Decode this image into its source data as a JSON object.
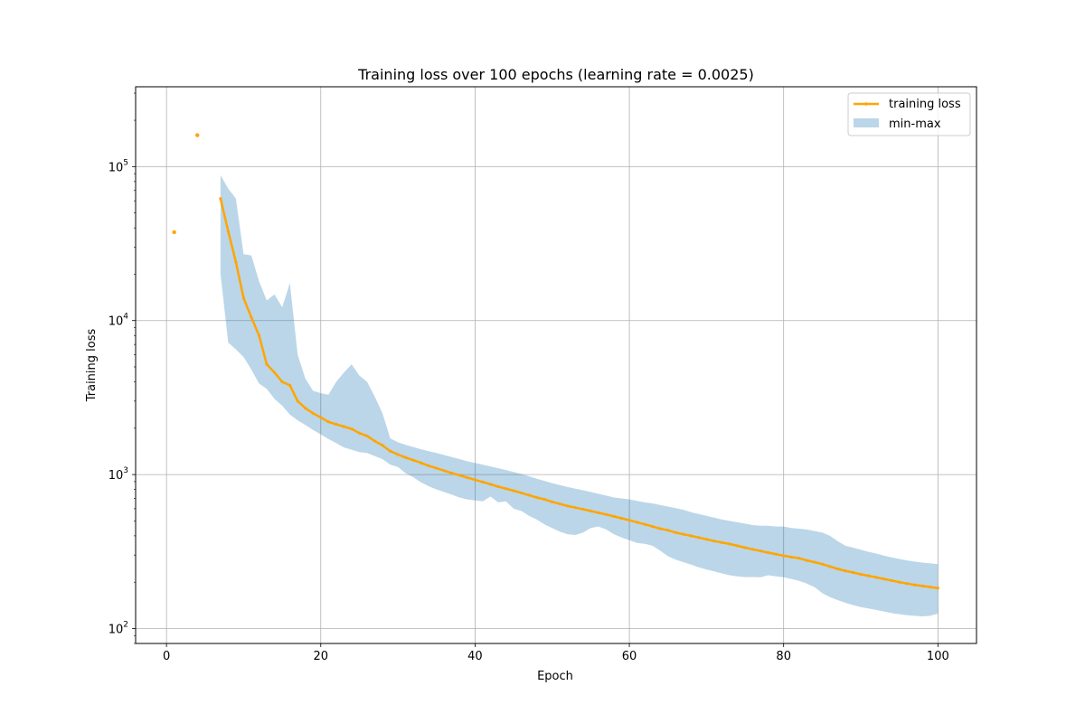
{
  "chart_data": {
    "type": "line",
    "title": "Training loss over 100 epochs (learning rate = 0.0025)",
    "xlabel": "Epoch",
    "ylabel": "Training loss",
    "yscale": "log",
    "xlim": [
      -4,
      105
    ],
    "ylim": [
      80,
      330000
    ],
    "xticks": [
      0,
      20,
      40,
      60,
      80,
      100
    ],
    "yticks": [
      100,
      1000,
      10000,
      100000
    ],
    "ytick_labels": [
      {
        "base": "10",
        "exp": "2"
      },
      {
        "base": "10",
        "exp": "3"
      },
      {
        "base": "10",
        "exp": "4"
      },
      {
        "base": "10",
        "exp": "5"
      }
    ],
    "grid": true,
    "legend_position": "top-right",
    "colors": {
      "line": "#ffa500",
      "band": "#1f77b4"
    },
    "series": [
      {
        "name": "training loss",
        "kind": "line",
        "isolated_points": [
          [
            1,
            37500
          ],
          [
            4,
            160000
          ]
        ],
        "x": [
          7,
          8,
          9,
          10,
          11,
          12,
          13,
          14,
          15,
          16,
          17,
          18,
          19,
          20,
          21,
          22,
          23,
          24,
          25,
          26,
          27,
          28,
          29,
          30,
          31,
          32,
          33,
          34,
          35,
          36,
          37,
          38,
          39,
          40,
          41,
          42,
          43,
          44,
          45,
          46,
          47,
          48,
          49,
          50,
          51,
          52,
          53,
          54,
          55,
          56,
          57,
          58,
          59,
          60,
          61,
          62,
          63,
          64,
          65,
          66,
          67,
          68,
          69,
          70,
          71,
          72,
          73,
          74,
          75,
          76,
          77,
          78,
          79,
          80,
          81,
          82,
          83,
          84,
          85,
          86,
          87,
          88,
          89,
          90,
          91,
          92,
          93,
          94,
          95,
          96,
          97,
          98,
          99,
          100
        ],
        "y": [
          62000,
          38000,
          24000,
          14000,
          10500,
          8000,
          5200,
          4600,
          4000,
          3800,
          3000,
          2700,
          2500,
          2350,
          2200,
          2120,
          2050,
          1980,
          1860,
          1780,
          1650,
          1550,
          1420,
          1350,
          1290,
          1240,
          1190,
          1140,
          1100,
          1060,
          1020,
          990,
          955,
          925,
          895,
          865,
          835,
          810,
          785,
          760,
          735,
          710,
          690,
          665,
          645,
          625,
          610,
          595,
          580,
          565,
          550,
          535,
          520,
          505,
          490,
          475,
          460,
          445,
          435,
          420,
          410,
          400,
          390,
          380,
          370,
          362,
          354,
          345,
          335,
          327,
          319,
          311,
          304,
          297,
          291,
          286,
          277,
          270,
          262,
          253,
          244,
          237,
          231,
          225,
          220,
          215,
          210,
          205,
          200,
          196,
          192,
          189,
          186,
          183
        ]
      },
      {
        "name": "min-max",
        "kind": "band",
        "x": [
          7,
          8,
          9,
          10,
          11,
          12,
          13,
          14,
          15,
          16,
          17,
          18,
          19,
          20,
          21,
          22,
          23,
          24,
          25,
          26,
          27,
          28,
          29,
          30,
          31,
          32,
          33,
          34,
          35,
          36,
          37,
          38,
          39,
          40,
          41,
          42,
          43,
          44,
          45,
          46,
          47,
          48,
          49,
          50,
          51,
          52,
          53,
          54,
          55,
          56,
          57,
          58,
          59,
          60,
          61,
          62,
          63,
          64,
          65,
          66,
          67,
          68,
          69,
          70,
          71,
          72,
          73,
          74,
          75,
          76,
          77,
          78,
          79,
          80,
          81,
          82,
          83,
          84,
          85,
          86,
          87,
          88,
          89,
          90,
          91,
          92,
          93,
          94,
          95,
          96,
          97,
          98,
          99,
          100
        ],
        "low": [
          20000,
          7200,
          6500,
          5800,
          4800,
          3900,
          3600,
          3100,
          2800,
          2450,
          2250,
          2100,
          1950,
          1820,
          1700,
          1600,
          1500,
          1450,
          1400,
          1380,
          1320,
          1260,
          1160,
          1120,
          1020,
          960,
          890,
          840,
          800,
          770,
          740,
          710,
          690,
          680,
          670,
          720,
          660,
          670,
          600,
          580,
          540,
          510,
          475,
          450,
          425,
          410,
          405,
          420,
          450,
          460,
          440,
          410,
          390,
          375,
          360,
          355,
          345,
          320,
          295,
          280,
          270,
          260,
          250,
          242,
          235,
          228,
          222,
          218,
          216,
          216,
          215,
          222,
          218,
          215,
          210,
          204,
          196,
          186,
          170,
          160,
          153,
          147,
          142,
          138,
          135,
          132,
          129,
          126,
          124,
          122,
          121,
          120,
          121,
          125
        ],
        "high": [
          88000,
          72000,
          62000,
          27000,
          26500,
          18000,
          13500,
          14800,
          12200,
          17500,
          6000,
          4200,
          3500,
          3380,
          3300,
          4000,
          4600,
          5200,
          4400,
          4000,
          3200,
          2500,
          1720,
          1620,
          1560,
          1510,
          1460,
          1420,
          1380,
          1340,
          1300,
          1260,
          1220,
          1190,
          1160,
          1130,
          1100,
          1070,
          1040,
          1010,
          975,
          940,
          910,
          880,
          855,
          830,
          810,
          790,
          770,
          750,
          730,
          710,
          700,
          690,
          675,
          660,
          650,
          635,
          620,
          605,
          590,
          570,
          555,
          540,
          525,
          510,
          500,
          490,
          480,
          470,
          465,
          465,
          460,
          460,
          450,
          445,
          440,
          430,
          420,
          400,
          370,
          345,
          335,
          325,
          315,
          307,
          298,
          290,
          283,
          277,
          272,
          268,
          265,
          262
        ]
      }
    ]
  }
}
